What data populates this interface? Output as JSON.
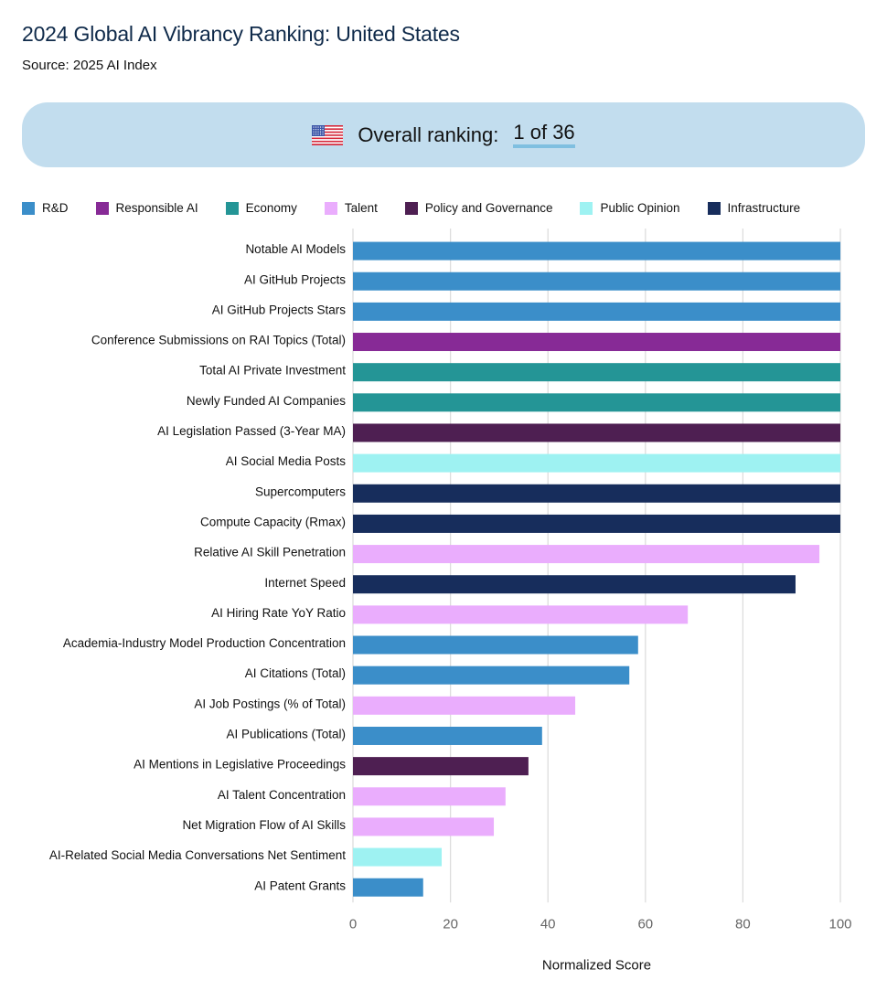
{
  "header": {
    "title": "2024 Global AI Vibrancy Ranking: United States",
    "source": "Source: 2025 AI Index"
  },
  "banner": {
    "flag_icon": "us-flag-icon",
    "label": "Overall ranking:",
    "value": "1 of 36"
  },
  "colors": {
    "R&D": "#3b8ec9",
    "Responsible AI": "#872a96",
    "Economy": "#249596",
    "Talent": "#eaadfd",
    "Policy and Governance": "#4e1f52",
    "Public Opinion": "#9ef2f2",
    "Infrastructure": "#172d5c",
    "banner_bg": "#c2ddee",
    "ranking_underline": "#7fbfe0"
  },
  "chart_data": {
    "type": "bar",
    "orientation": "horizontal",
    "title": "2024 Global AI Vibrancy Ranking: United States",
    "xlabel": "Normalized Score",
    "ylabel": "",
    "xlim": [
      0,
      100
    ],
    "xticks": [
      0,
      20,
      40,
      60,
      80,
      100
    ],
    "grid": true,
    "legend_position": "top",
    "legend": [
      "R&D",
      "Responsible AI",
      "Economy",
      "Talent",
      "Policy and Governance",
      "Public Opinion",
      "Infrastructure"
    ],
    "categories": [
      "Notable AI Models",
      "AI GitHub Projects",
      "AI GitHub Projects Stars",
      "Conference Submissions on RAI Topics (Total)",
      "Total AI Private Investment",
      "Newly Funded AI Companies",
      "AI Legislation Passed (3-Year MA)",
      "AI Social Media Posts",
      "Supercomputers",
      "Compute Capacity (Rmax)",
      "Relative AI Skill Penetration",
      "Internet Speed",
      "AI Hiring Rate YoY Ratio",
      "Academia-Industry Model Production Concentration",
      "AI Citations (Total)",
      "AI Job Postings (% of Total)",
      "AI Publications (Total)",
      "AI Mentions in Legislative Proceedings",
      "AI Talent Concentration",
      "Net Migration Flow of AI Skills",
      "AI-Related Social Media Conversations Net Sentiment",
      "AI Patent Grants"
    ],
    "pillars": [
      "R&D",
      "R&D",
      "R&D",
      "Responsible AI",
      "Economy",
      "Economy",
      "Policy and Governance",
      "Public Opinion",
      "Infrastructure",
      "Infrastructure",
      "Talent",
      "Infrastructure",
      "Talent",
      "R&D",
      "R&D",
      "Talent",
      "R&D",
      "Policy and Governance",
      "Talent",
      "Talent",
      "Public Opinion",
      "R&D"
    ],
    "values": [
      100,
      100,
      100,
      100,
      100,
      100,
      100,
      100,
      100,
      100,
      95.7,
      90.8,
      68.7,
      58.5,
      56.7,
      45.6,
      38.8,
      36.0,
      31.3,
      28.9,
      18.2,
      14.4
    ]
  }
}
